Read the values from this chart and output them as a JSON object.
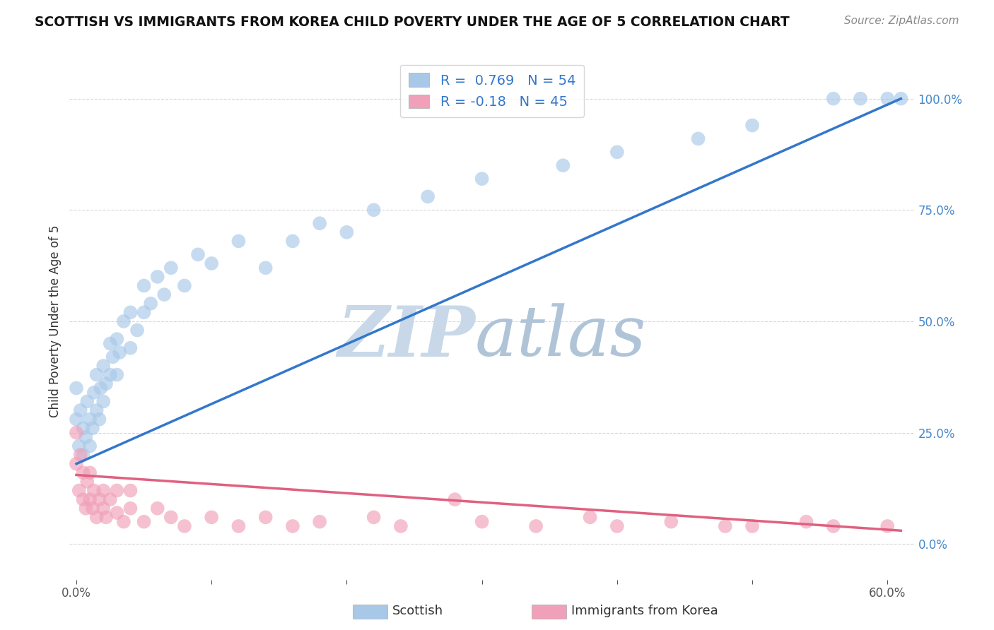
{
  "title": "SCOTTISH VS IMMIGRANTS FROM KOREA CHILD POVERTY UNDER THE AGE OF 5 CORRELATION CHART",
  "source": "Source: ZipAtlas.com",
  "ylabel": "Child Poverty Under the Age of 5",
  "xlim": [
    -0.005,
    0.62
  ],
  "ylim": [
    -0.08,
    1.08
  ],
  "xtick_positions": [
    0.0,
    0.1,
    0.2,
    0.3,
    0.4,
    0.5,
    0.6
  ],
  "xtick_labels": [
    "0.0%",
    "",
    "",
    "",
    "",
    "",
    "60.0%"
  ],
  "ytick_positions": [
    0.0,
    0.25,
    0.5,
    0.75,
    1.0
  ],
  "ytick_labels": [
    "0.0%",
    "25.0%",
    "50.0%",
    "75.0%",
    "100.0%"
  ],
  "legend_blue_label": "Scottish",
  "legend_pink_label": "Immigrants from Korea",
  "R_blue": 0.769,
  "N_blue": 54,
  "R_pink": -0.18,
  "N_pink": 45,
  "blue_scatter_color": "#a8c8e8",
  "blue_line_color": "#3377cc",
  "pink_scatter_color": "#f0a0b8",
  "pink_line_color": "#e06080",
  "background_color": "#ffffff",
  "grid_color": "#cccccc",
  "watermark_zip_color": "#c8d8e8",
  "watermark_atlas_color": "#b0c4d8",
  "title_color": "#111111",
  "source_color": "#888888",
  "ylabel_color": "#333333",
  "tick_color": "#555555",
  "right_tick_color": "#4488cc",
  "legend_text_color": "#3377cc",
  "scatter_blue_x": [
    0.0,
    0.0,
    0.002,
    0.003,
    0.005,
    0.005,
    0.007,
    0.008,
    0.01,
    0.01,
    0.012,
    0.013,
    0.015,
    0.015,
    0.017,
    0.018,
    0.02,
    0.02,
    0.022,
    0.025,
    0.025,
    0.027,
    0.03,
    0.03,
    0.032,
    0.035,
    0.04,
    0.04,
    0.045,
    0.05,
    0.05,
    0.055,
    0.06,
    0.065,
    0.07,
    0.08,
    0.09,
    0.1,
    0.12,
    0.14,
    0.16,
    0.18,
    0.2,
    0.22,
    0.26,
    0.3,
    0.36,
    0.4,
    0.46,
    0.5,
    0.56,
    0.58,
    0.6,
    0.61
  ],
  "scatter_blue_y": [
    0.28,
    0.35,
    0.22,
    0.3,
    0.2,
    0.26,
    0.24,
    0.32,
    0.22,
    0.28,
    0.26,
    0.34,
    0.3,
    0.38,
    0.28,
    0.35,
    0.32,
    0.4,
    0.36,
    0.38,
    0.45,
    0.42,
    0.38,
    0.46,
    0.43,
    0.5,
    0.44,
    0.52,
    0.48,
    0.52,
    0.58,
    0.54,
    0.6,
    0.56,
    0.62,
    0.58,
    0.65,
    0.63,
    0.68,
    0.62,
    0.68,
    0.72,
    0.7,
    0.75,
    0.78,
    0.82,
    0.85,
    0.88,
    0.91,
    0.94,
    1.0,
    1.0,
    1.0,
    1.0
  ],
  "scatter_pink_x": [
    0.0,
    0.0,
    0.002,
    0.003,
    0.005,
    0.005,
    0.007,
    0.008,
    0.01,
    0.01,
    0.012,
    0.013,
    0.015,
    0.017,
    0.02,
    0.02,
    0.022,
    0.025,
    0.03,
    0.03,
    0.035,
    0.04,
    0.04,
    0.05,
    0.06,
    0.07,
    0.08,
    0.1,
    0.12,
    0.14,
    0.16,
    0.18,
    0.22,
    0.24,
    0.28,
    0.3,
    0.34,
    0.38,
    0.4,
    0.44,
    0.48,
    0.5,
    0.54,
    0.56,
    0.6
  ],
  "scatter_pink_y": [
    0.18,
    0.25,
    0.12,
    0.2,
    0.1,
    0.16,
    0.08,
    0.14,
    0.1,
    0.16,
    0.08,
    0.12,
    0.06,
    0.1,
    0.08,
    0.12,
    0.06,
    0.1,
    0.07,
    0.12,
    0.05,
    0.08,
    0.12,
    0.05,
    0.08,
    0.06,
    0.04,
    0.06,
    0.04,
    0.06,
    0.04,
    0.05,
    0.06,
    0.04,
    0.1,
    0.05,
    0.04,
    0.06,
    0.04,
    0.05,
    0.04,
    0.04,
    0.05,
    0.04,
    0.04
  ],
  "blue_line_x0": 0.0,
  "blue_line_x1": 0.61,
  "blue_line_y0": 0.18,
  "blue_line_y1": 1.0,
  "pink_line_x0": 0.0,
  "pink_line_x1": 0.61,
  "pink_line_y0": 0.155,
  "pink_line_y1": 0.03
}
